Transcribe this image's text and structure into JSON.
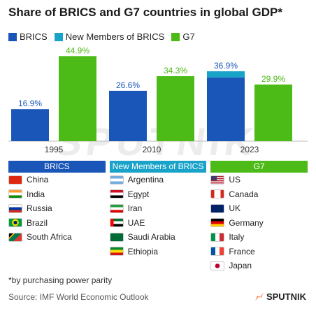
{
  "title": "Share of BRICS and G7 countries in global GDP*",
  "legend": [
    {
      "label": "BRICS",
      "color": "#1a56b8"
    },
    {
      "label": "New Members of BRICS",
      "color": "#1aa3c9"
    },
    {
      "label": "G7",
      "color": "#4cbb17"
    }
  ],
  "chart_data": {
    "type": "bar",
    "title": "Share of BRICS and G7 countries in global GDP*",
    "categories": [
      "1995",
      "2010",
      "2023"
    ],
    "ylim": [
      0,
      50
    ],
    "series": [
      {
        "name": "BRICS",
        "values": [
          16.9,
          26.6,
          33.6
        ],
        "color": "#1a56b8"
      },
      {
        "name": "New Members of BRICS",
        "values": [
          0,
          0,
          3.3
        ],
        "color": "#1aa3c9"
      },
      {
        "name": "G7",
        "values": [
          44.9,
          34.3,
          29.9
        ],
        "color": "#4cbb17"
      }
    ],
    "labels": {
      "brics_total": [
        "16.9%",
        "26.6%",
        "36.9%"
      ],
      "g7": [
        "44.9%",
        "34.3%",
        "29.9%"
      ]
    },
    "stacked": [
      "BRICS",
      "New Members of BRICS"
    ],
    "label_colors": {
      "brics": "#1a56b8",
      "g7": "#4cbb17"
    }
  },
  "columns": [
    {
      "header": "BRICS",
      "color": "#1a56b8",
      "countries": [
        {
          "name": "China",
          "flag": "china-flag"
        },
        {
          "name": "India",
          "flag": "india-flag"
        },
        {
          "name": "Russia",
          "flag": "russia-flag"
        },
        {
          "name": "Brazil",
          "flag": "brazil-flag"
        },
        {
          "name": "South Africa",
          "flag": "south-africa-flag"
        }
      ]
    },
    {
      "header": "New Members of BRICS",
      "color": "#1aa3c9",
      "countries": [
        {
          "name": "Argentina",
          "flag": "argentina-flag"
        },
        {
          "name": "Egypt",
          "flag": "egypt-flag"
        },
        {
          "name": "Iran",
          "flag": "iran-flag"
        },
        {
          "name": "UAE",
          "flag": "uae-flag"
        },
        {
          "name": "Saudi Arabia",
          "flag": "saudi-arabia-flag"
        },
        {
          "name": "Ethiopia",
          "flag": "ethiopia-flag"
        }
      ]
    },
    {
      "header": "G7",
      "color": "#4cbb17",
      "countries": [
        {
          "name": "US",
          "flag": "us-flag"
        },
        {
          "name": "Canada",
          "flag": "canada-flag"
        },
        {
          "name": "UK",
          "flag": "uk-flag"
        },
        {
          "name": "Germany",
          "flag": "germany-flag"
        },
        {
          "name": "Italy",
          "flag": "italy-flag"
        },
        {
          "name": "France",
          "flag": "france-flag"
        },
        {
          "name": "Japan",
          "flag": "japan-flag"
        }
      ]
    }
  ],
  "footnote": "*by purchasing power parity",
  "source": "Source: IMF World Economic Outlook",
  "brand": "SPUTNIK",
  "watermark": "SPUTNIK"
}
